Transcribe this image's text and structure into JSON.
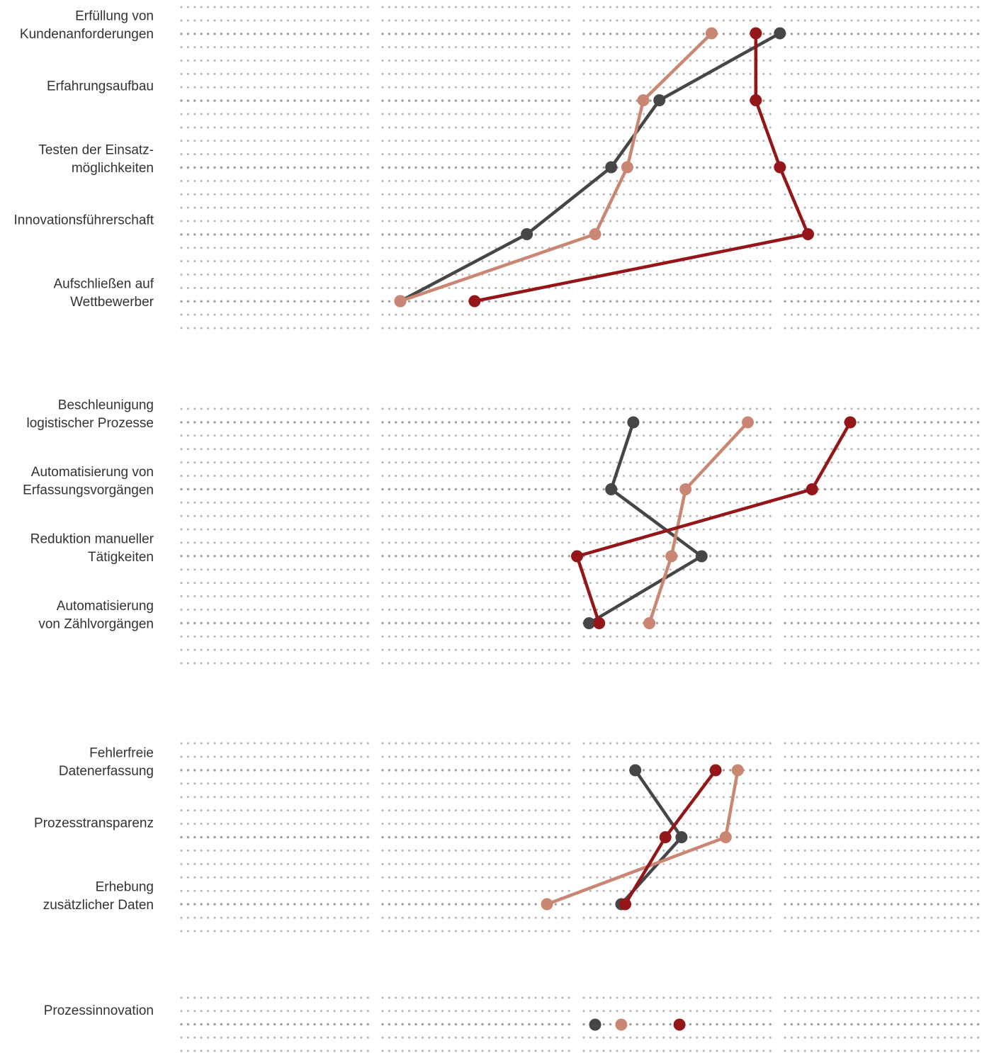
{
  "colors": {
    "dark": "#464649",
    "salmon": "#c98672",
    "red": "#941619",
    "grid": "#9a9a9a"
  },
  "chart_data": {
    "type": "line",
    "xlim": [
      0,
      4
    ],
    "grid": true,
    "series": [
      {
        "color": "#464649"
      },
      {
        "color": "#c98672"
      },
      {
        "color": "#941619"
      }
    ],
    "panels": [
      {
        "categories": [
          "Erfüllung von\nKundenanforderungen",
          "Erfahrungsaufbau",
          "Testen der Einsatz-\nmöglichkeiten",
          "Innovationsführerschaft",
          "Aufschließen auf\nWettbewerber"
        ],
        "values": [
          [
            2.98,
            2.38,
            2.14,
            1.72,
            1.09
          ],
          [
            2.64,
            2.3,
            2.22,
            2.06,
            1.09
          ],
          [
            2.86,
            2.86,
            2.98,
            3.12,
            1.46
          ]
        ]
      },
      {
        "categories": [
          "Beschleunigung\nlogistischer Prozesse",
          "Automatisierung von\nErfassungsvorgängen",
          "Reduktion manueller\nTätigkeiten",
          "Automatisierung\nvon  Zählvorgängen"
        ],
        "values": [
          [
            2.25,
            2.14,
            2.59,
            2.03
          ],
          [
            2.82,
            2.51,
            2.44,
            2.33
          ],
          [
            3.33,
            3.14,
            1.97,
            2.08
          ]
        ]
      },
      {
        "categories": [
          "Fehlerfreie\nDatenerfassung",
          "Prozesstransparenz",
          "Erhebung\nzusätzlicher Daten"
        ],
        "values": [
          [
            2.26,
            2.49,
            2.19
          ],
          [
            2.77,
            2.71,
            1.82
          ],
          [
            2.66,
            2.41,
            2.21
          ]
        ]
      },
      {
        "categories": [
          "Prozessinnovation"
        ],
        "values": [
          [
            2.06
          ],
          [
            2.19
          ],
          [
            2.48
          ]
        ]
      }
    ]
  }
}
